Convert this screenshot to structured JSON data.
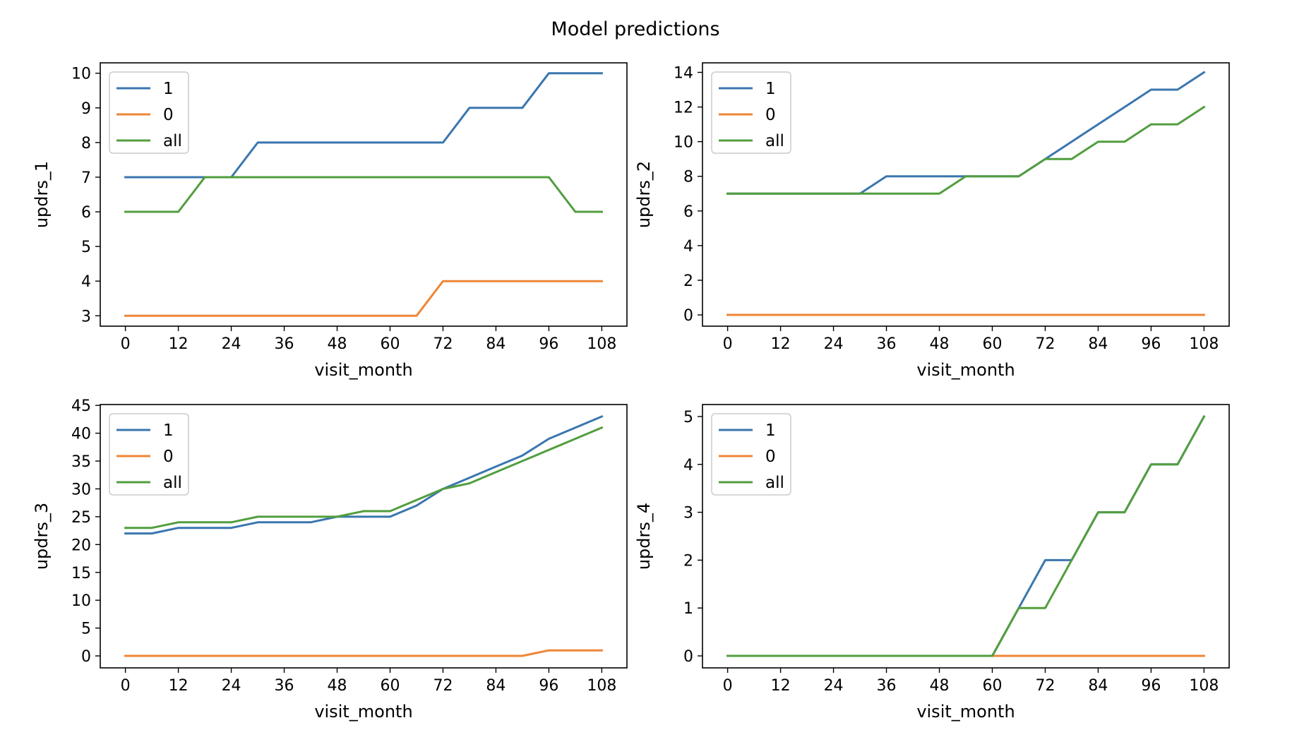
{
  "title": "Model predictions",
  "colors": {
    "1": "#3a76af",
    "0": "#ef8636",
    "all": "#519e3e",
    "axis": "#000000",
    "legend_border": "#cccccc"
  },
  "chart_data": [
    {
      "type": "line",
      "xlabel": "visit_month",
      "ylabel": "updrs_1",
      "xticks": [
        0,
        12,
        24,
        36,
        48,
        60,
        72,
        84,
        96,
        108
      ],
      "yticks": [
        3,
        4,
        5,
        6,
        7,
        8,
        9,
        10
      ],
      "xlim": [
        -5.7,
        113.7
      ],
      "ylim": [
        2.7,
        10.3
      ],
      "grid": false,
      "legend_position": "upper-left",
      "x": [
        0,
        6,
        12,
        18,
        24,
        30,
        36,
        42,
        48,
        54,
        60,
        66,
        72,
        78,
        84,
        90,
        96,
        102,
        108
      ],
      "series": [
        {
          "name": "1",
          "color": "#3a76af",
          "values": [
            7,
            7,
            7,
            7,
            7,
            8,
            8,
            8,
            8,
            8,
            8,
            8,
            8,
            9,
            9,
            9,
            10,
            10,
            10
          ]
        },
        {
          "name": "0",
          "color": "#ef8636",
          "values": [
            3,
            3,
            3,
            3,
            3,
            3,
            3,
            3,
            3,
            3,
            3,
            3,
            4,
            4,
            4,
            4,
            4,
            4,
            4
          ]
        },
        {
          "name": "all",
          "color": "#519e3e",
          "values": [
            6,
            6,
            6,
            7,
            7,
            7,
            7,
            7,
            7,
            7,
            7,
            7,
            7,
            7,
            7,
            7,
            7,
            6,
            6
          ]
        }
      ]
    },
    {
      "type": "line",
      "xlabel": "visit_month",
      "ylabel": "updrs_2",
      "xticks": [
        0,
        12,
        24,
        36,
        48,
        60,
        72,
        84,
        96,
        108
      ],
      "yticks": [
        0,
        2,
        4,
        6,
        8,
        10,
        12,
        14
      ],
      "xlim": [
        -5.7,
        113.7
      ],
      "ylim": [
        -0.65,
        14.55
      ],
      "grid": false,
      "legend_position": "upper-left",
      "x": [
        0,
        6,
        12,
        18,
        24,
        30,
        36,
        42,
        48,
        54,
        60,
        66,
        72,
        78,
        84,
        90,
        96,
        102,
        108
      ],
      "series": [
        {
          "name": "1",
          "color": "#3a76af",
          "values": [
            7,
            7,
            7,
            7,
            7,
            7,
            8,
            8,
            8,
            8,
            8,
            8,
            9,
            10,
            11,
            12,
            13,
            13,
            14
          ]
        },
        {
          "name": "0",
          "color": "#ef8636",
          "values": [
            0,
            0,
            0,
            0,
            0,
            0,
            0,
            0,
            0,
            0,
            0,
            0,
            0,
            0,
            0,
            0,
            0,
            0,
            0
          ]
        },
        {
          "name": "all",
          "color": "#519e3e",
          "values": [
            7,
            7,
            7,
            7,
            7,
            7,
            7,
            7,
            7,
            8,
            8,
            8,
            9,
            9,
            10,
            10,
            11,
            11,
            12
          ]
        }
      ]
    },
    {
      "type": "line",
      "xlabel": "visit_month",
      "ylabel": "updrs_3",
      "xticks": [
        0,
        12,
        24,
        36,
        48,
        60,
        72,
        84,
        96,
        108
      ],
      "yticks": [
        0,
        5,
        10,
        15,
        20,
        25,
        30,
        35,
        40,
        45
      ],
      "xlim": [
        -5.7,
        113.7
      ],
      "ylim": [
        -2.15,
        45.15
      ],
      "grid": false,
      "legend_position": "upper-left",
      "x": [
        0,
        6,
        12,
        18,
        24,
        30,
        36,
        42,
        48,
        54,
        60,
        66,
        72,
        78,
        84,
        90,
        96,
        102,
        108
      ],
      "series": [
        {
          "name": "1",
          "color": "#3a76af",
          "values": [
            22,
            22,
            23,
            23,
            23,
            24,
            24,
            24,
            25,
            25,
            25,
            27,
            30,
            32,
            34,
            36,
            39,
            41,
            43
          ]
        },
        {
          "name": "0",
          "color": "#ef8636",
          "values": [
            0,
            0,
            0,
            0,
            0,
            0,
            0,
            0,
            0,
            0,
            0,
            0,
            0,
            0,
            0,
            0,
            1,
            1,
            1
          ]
        },
        {
          "name": "all",
          "color": "#519e3e",
          "values": [
            23,
            23,
            24,
            24,
            24,
            25,
            25,
            25,
            25,
            26,
            26,
            28,
            30,
            31,
            33,
            35,
            37,
            39,
            41
          ]
        }
      ]
    },
    {
      "type": "line",
      "xlabel": "visit_month",
      "ylabel": "updrs_4",
      "xticks": [
        0,
        12,
        24,
        36,
        48,
        60,
        72,
        84,
        96,
        108
      ],
      "yticks": [
        0,
        1,
        2,
        3,
        4,
        5
      ],
      "xlim": [
        -5.7,
        113.7
      ],
      "ylim": [
        -0.25,
        5.25
      ],
      "grid": false,
      "legend_position": "upper-left",
      "x": [
        0,
        6,
        12,
        18,
        24,
        30,
        36,
        42,
        48,
        54,
        60,
        66,
        72,
        78,
        84,
        90,
        96,
        102,
        108
      ],
      "series": [
        {
          "name": "1",
          "color": "#3a76af",
          "values": [
            0,
            0,
            0,
            0,
            0,
            0,
            0,
            0,
            0,
            0,
            0,
            1,
            2,
            2,
            3,
            3,
            4,
            4,
            5
          ]
        },
        {
          "name": "0",
          "color": "#ef8636",
          "values": [
            0,
            0,
            0,
            0,
            0,
            0,
            0,
            0,
            0,
            0,
            0,
            0,
            0,
            0,
            0,
            0,
            0,
            0,
            0
          ]
        },
        {
          "name": "all",
          "color": "#519e3e",
          "values": [
            0,
            0,
            0,
            0,
            0,
            0,
            0,
            0,
            0,
            0,
            0,
            1,
            1,
            2,
            3,
            3,
            4,
            4,
            5
          ]
        }
      ]
    }
  ]
}
